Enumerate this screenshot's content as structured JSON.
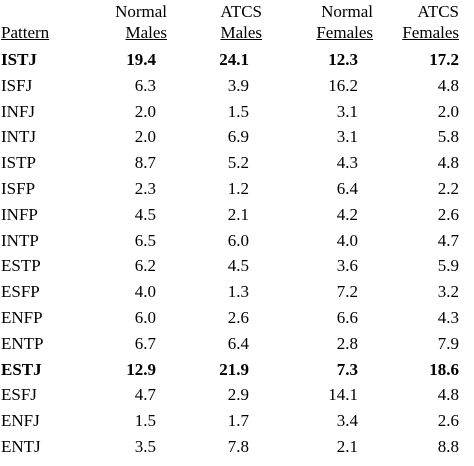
{
  "table": {
    "headers": {
      "pattern": "Pattern",
      "normal_males": [
        "Normal",
        "Males"
      ],
      "atcs_males": [
        "ATCS",
        "Males"
      ],
      "normal_females": [
        "Normal",
        "Females"
      ],
      "atcs_females": [
        "ATCS",
        "Females"
      ]
    },
    "rows": [
      {
        "pattern": "ISTJ",
        "normal_males": "19.4",
        "atcs_males": "24.1",
        "normal_females": "12.3",
        "atcs_females": "17.2",
        "bold": true
      },
      {
        "pattern": "ISFJ",
        "normal_males": "6.3",
        "atcs_males": "3.9",
        "normal_females": "16.2",
        "atcs_females": "4.8",
        "bold": false
      },
      {
        "pattern": "INFJ",
        "normal_males": "2.0",
        "atcs_males": "1.5",
        "normal_females": "3.1",
        "atcs_females": "2.0",
        "bold": false
      },
      {
        "pattern": "INTJ",
        "normal_males": "2.0",
        "atcs_males": "6.9",
        "normal_females": "3.1",
        "atcs_females": "5.8",
        "bold": false
      },
      {
        "pattern": "ISTP",
        "normal_males": "8.7",
        "atcs_males": "5.2",
        "normal_females": "4.3",
        "atcs_females": "4.8",
        "bold": false
      },
      {
        "pattern": "ISFP",
        "normal_males": "2.3",
        "atcs_males": "1.2",
        "normal_females": "6.4",
        "atcs_females": "2.2",
        "bold": false
      },
      {
        "pattern": "INFP",
        "normal_males": "4.5",
        "atcs_males": "2.1",
        "normal_females": "4.2",
        "atcs_females": "2.6",
        "bold": false
      },
      {
        "pattern": "INTP",
        "normal_males": "6.5",
        "atcs_males": "6.0",
        "normal_females": "4.0",
        "atcs_females": "4.7",
        "bold": false
      },
      {
        "pattern": "ESTP",
        "normal_males": "6.2",
        "atcs_males": "4.5",
        "normal_females": "3.6",
        "atcs_females": "5.9",
        "bold": false
      },
      {
        "pattern": "ESFP",
        "normal_males": "4.0",
        "atcs_males": "1.3",
        "normal_females": "7.2",
        "atcs_females": "3.2",
        "bold": false
      },
      {
        "pattern": "ENFP",
        "normal_males": "6.0",
        "atcs_males": "2.6",
        "normal_females": "6.6",
        "atcs_females": "4.3",
        "bold": false
      },
      {
        "pattern": "ENTP",
        "normal_males": "6.7",
        "atcs_males": "6.4",
        "normal_females": "2.8",
        "atcs_females": "7.9",
        "bold": false
      },
      {
        "pattern": "ESTJ",
        "normal_males": "12.9",
        "atcs_males": "21.9",
        "normal_females": "7.3",
        "atcs_females": "18.6",
        "bold": true
      },
      {
        "pattern": "ESFJ",
        "normal_males": "4.7",
        "atcs_males": "2.9",
        "normal_females": "14.1",
        "atcs_females": "4.8",
        "bold": false
      },
      {
        "pattern": "ENFJ",
        "normal_males": "1.5",
        "atcs_males": "1.7",
        "normal_females": "3.4",
        "atcs_females": "2.6",
        "bold": false
      },
      {
        "pattern": "ENTJ",
        "normal_males": "3.5",
        "atcs_males": "7.8",
        "normal_females": "2.1",
        "atcs_females": "8.8",
        "bold": false
      }
    ]
  }
}
